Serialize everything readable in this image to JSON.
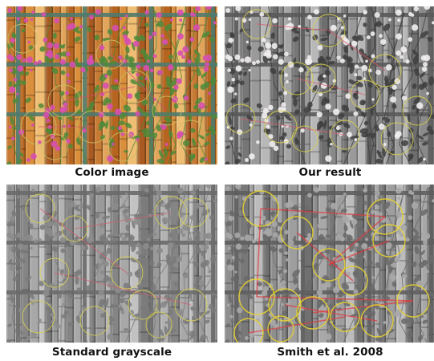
{
  "panels": [
    {
      "caption": "Color image",
      "mode": "color",
      "bamboo_colors": [
        "#c77a33",
        "#e0a45a",
        "#b5651f",
        "#d98f3c",
        "#f0bd74",
        "#a85a22"
      ],
      "trellis_color": "#4f7a6e",
      "leaf_color": "#4f8a3a",
      "flower_color": "#d64fb0",
      "circle_color": "#c8c060",
      "line_color": "#d05070"
    },
    {
      "caption": "Our result",
      "mode": "ours",
      "bamboo_colors": [
        "#8a8a8a",
        "#a5a5a5",
        "#767676",
        "#9a9a9a",
        "#b8b8b8",
        "#6e6e6e"
      ],
      "trellis_color": "#5a5a5a",
      "leaf_color": "#3e3e3e",
      "flower_color": "#f2eef0",
      "circle_color": "#d8d04a",
      "line_color": "#d85a6a"
    },
    {
      "caption": "Standard grayscale",
      "mode": "standard",
      "bamboo_colors": [
        "#9a9a9a",
        "#b2b2b2",
        "#858585",
        "#a8a8a8",
        "#c2c2c2",
        "#7c7c7c"
      ],
      "trellis_color": "#6a6a6a",
      "leaf_color": "#7a7a7a",
      "flower_color": "#8c8c8c",
      "circle_color": "#d8d050",
      "line_color": "#d06070"
    },
    {
      "caption": "Smith et al. 2008",
      "mode": "smith",
      "bamboo_colors": [
        "#8e8e8e",
        "#a8a8a8",
        "#787878",
        "#9e9e9e",
        "#bcbcbc",
        "#707070"
      ],
      "trellis_color": "#5e5e5e",
      "leaf_color": "#6a6a6a",
      "flower_color": "#a8a8a8",
      "circle_color": "#e6d230",
      "line_color": "#e03a40"
    }
  ]
}
